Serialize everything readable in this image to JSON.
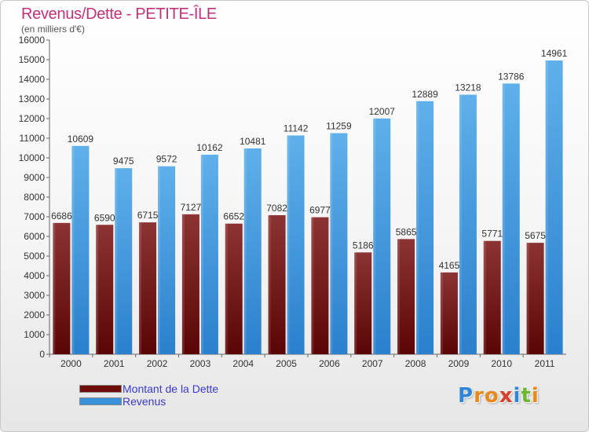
{
  "header": {
    "title": "Revenus/Dette - PETITE-ÎLE",
    "subtitle": "(en milliers d'€)"
  },
  "chart_data": {
    "type": "bar",
    "title": "Revenus/Dette - PETITE-ÎLE",
    "subtitle": "(en milliers d'€)",
    "categories": [
      "2000",
      "2001",
      "2002",
      "2003",
      "2004",
      "2005",
      "2006",
      "2007",
      "2008",
      "2009",
      "2010",
      "2011"
    ],
    "series": [
      {
        "name": "Montant de la Dette",
        "color": "#7a1e1e",
        "values": [
          6686,
          6590,
          6715,
          7127,
          6652,
          7082,
          6977,
          5186,
          5865,
          4165,
          5771,
          5675
        ]
      },
      {
        "name": "Revenus",
        "color": "#3a92db",
        "values": [
          10609,
          9475,
          9572,
          10162,
          10481,
          11142,
          11259,
          12007,
          12889,
          13218,
          13786,
          14961
        ]
      }
    ],
    "ylim": [
      0,
      16000
    ],
    "yticks": [
      0,
      1000,
      2000,
      3000,
      4000,
      5000,
      6000,
      7000,
      8000,
      9000,
      10000,
      11000,
      12000,
      13000,
      14000,
      15000,
      16000
    ],
    "grid": false,
    "legend_position": "bottom-left",
    "xlabel": "",
    "ylabel": ""
  },
  "legend": [
    {
      "label": "Montant de la Dette",
      "color": "#6e0b0b"
    },
    {
      "label": "Revenus",
      "color": "#3a92db"
    }
  ],
  "brand": {
    "letters": [
      "P",
      "r",
      "o",
      "x",
      "i",
      "t",
      "i"
    ],
    "colors": [
      "#2f86d6",
      "#e8891c",
      "#e8891c",
      "#d8402a",
      "#2f86d6",
      "#6bb82f",
      "#e8891c"
    ]
  }
}
